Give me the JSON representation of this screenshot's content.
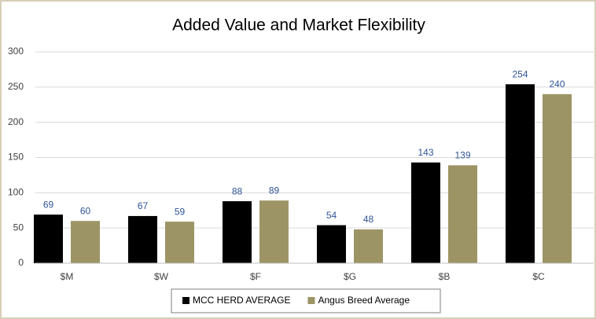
{
  "chart_data": {
    "type": "bar",
    "title": "Added Value and Market Flexibility",
    "categories": [
      "$M",
      "$W",
      "$F",
      "$G",
      "$B",
      "$C"
    ],
    "series": [
      {
        "name": "MCC HERD AVERAGE",
        "color": "#000000",
        "values": [
          69,
          67,
          88,
          54,
          143,
          254
        ]
      },
      {
        "name": "Angus Breed Average",
        "color": "#9d9466",
        "values": [
          60,
          59,
          89,
          48,
          139,
          240
        ]
      }
    ],
    "ylim": [
      0,
      300
    ],
    "yticks": [
      0,
      50,
      100,
      150,
      200,
      250,
      300
    ],
    "grid": true,
    "legend": "bottom"
  }
}
